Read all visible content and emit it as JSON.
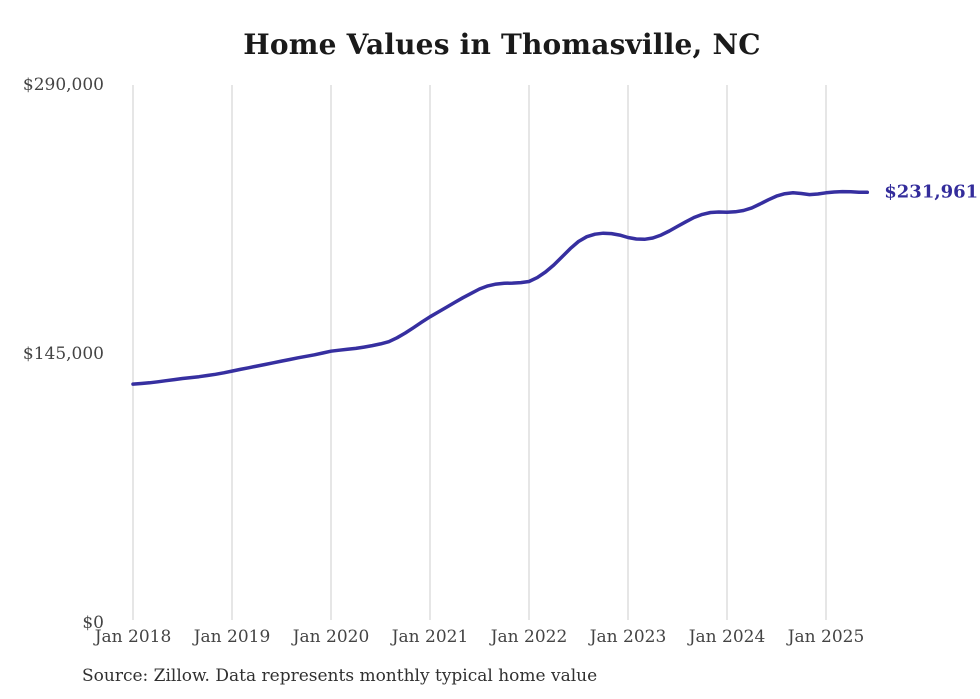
{
  "title": "Home Values in Thomasville, NC",
  "source_note": "Source: Zillow. Data represents monthly typical home value",
  "end_label": "$231,961",
  "colors": {
    "line": "#362fa0",
    "end_label_text": "#332c9b",
    "grid": "#cccccc",
    "axis_text": "#444444",
    "title_text": "#1a1a1a",
    "source_text": "#303030",
    "background": "#ffffff"
  },
  "chart_data": {
    "type": "line",
    "title": "Home Values in Thomasville, NC",
    "xlabel": "",
    "ylabel": "",
    "ylim": [
      0,
      290000
    ],
    "y_tick_labels": [
      "$0",
      "$145,000",
      "$290,000"
    ],
    "y_tick_values": [
      0,
      145000,
      290000
    ],
    "x_tick_labels": [
      "Jan 2018",
      "Jan 2019",
      "Jan 2020",
      "Jan 2021",
      "Jan 2022",
      "Jan 2023",
      "Jan 2024",
      "Jan 2025"
    ],
    "grid": "vertical-only",
    "legend_position": "none",
    "annotation": "$231,961",
    "series": [
      {
        "name": "Monthly typical home value",
        "interval": "monthly",
        "start": "2018-01",
        "end": "2025-06",
        "final_value": 231961,
        "values": [
          128200,
          128500,
          128900,
          129400,
          130000,
          130600,
          131200,
          131700,
          132200,
          132800,
          133500,
          134300,
          135200,
          136100,
          137000,
          137900,
          138800,
          139700,
          140600,
          141500,
          142400,
          143200,
          144000,
          145000,
          146000,
          146500,
          147000,
          147500,
          148200,
          149000,
          149900,
          151100,
          153200,
          155800,
          158700,
          161700,
          164600,
          167200,
          169800,
          172400,
          174900,
          177300,
          179600,
          181300,
          182300,
          182700,
          182800,
          183100,
          183700,
          185800,
          188800,
          192600,
          197000,
          201500,
          205300,
          207900,
          209300,
          209800,
          209600,
          208800,
          207500,
          206700,
          206500,
          207200,
          208800,
          211000,
          213500,
          216000,
          218300,
          220000,
          221000,
          221300,
          221200,
          221400,
          222100,
          223500,
          225600,
          227900,
          229900,
          231200,
          231700,
          231300,
          230700,
          231000,
          231700,
          232100,
          232300,
          232200,
          232000,
          231961
        ]
      }
    ]
  }
}
